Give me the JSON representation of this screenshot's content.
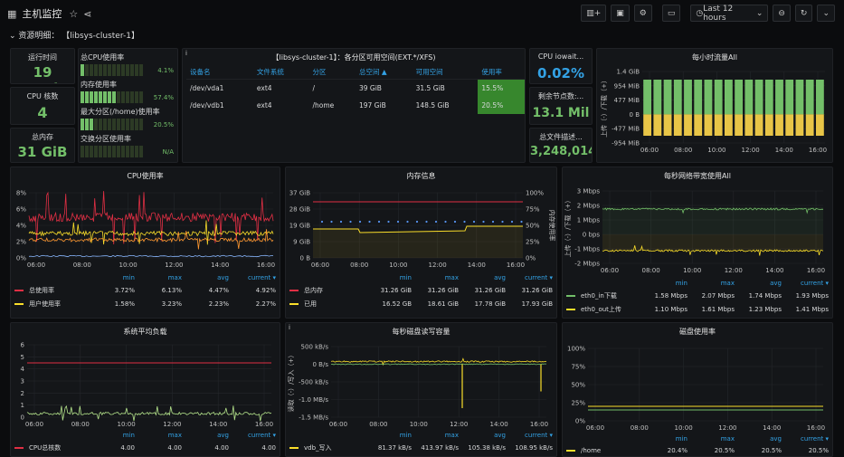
{
  "header": {
    "title": "主机监控",
    "time_range": "Last 12 hours"
  },
  "row_label": "资源明细： 【libsys-cluster-1】",
  "stats": {
    "uptime": {
      "title": "运行时间",
      "value": "19 week"
    },
    "cpu_cores": {
      "title": "CPU 核数",
      "value": "4"
    },
    "memory": {
      "title": "总内存",
      "value": "31 GiB"
    },
    "iowait": {
      "title": "CPU iowait...",
      "value": "0.02%"
    },
    "inodes": {
      "title": "剩余节点数:...",
      "value": "13.1 Mil"
    },
    "fds": {
      "title": "总文件描述...",
      "value": "3,248,014"
    }
  },
  "gauges": [
    {
      "label": "总CPU使用率",
      "value": "4.1%",
      "fill": 0.04
    },
    {
      "label": "内存使用率",
      "value": "57.4%",
      "fill": 0.57
    },
    {
      "label": "最大分区(/home)使用率",
      "value": "20.5%",
      "fill": 0.2
    },
    {
      "label": "交换分区使用率",
      "value": "N/A",
      "fill": 0
    }
  ],
  "disk_table": {
    "title": "【libsys-cluster-1】：各分区可用空间(EXT.*/XFS)",
    "headers": [
      "设备名",
      "文件系统",
      "分区",
      "总空间 ▲",
      "可用空间",
      "使用率"
    ],
    "rows": [
      [
        "/dev/vda1",
        "ext4",
        "/",
        "39 GiB",
        "31.5 GiB",
        "15.5%"
      ],
      [
        "/dev/vdb1",
        "ext4",
        "/home",
        "197 GiB",
        "148.5 GiB",
        "20.5%"
      ]
    ]
  },
  "charts": {
    "hourly_traffic": {
      "title": "每小时流量All",
      "yticks": [
        "1.4 GiB",
        "954 MiB",
        "477 MiB",
        "0 B",
        "-477 MiB",
        "-954 MiB"
      ],
      "xticks": [
        "06:00",
        "08:00",
        "10:00",
        "12:00",
        "14:00",
        "16:00"
      ],
      "ylabel": "上传（-）/下载（+）"
    },
    "cpu": {
      "title": "CPU使用率",
      "yticks": [
        "8%",
        "6%",
        "4%",
        "2%",
        "0%"
      ],
      "xticks": [
        "06:00",
        "08:00",
        "10:00",
        "12:00",
        "14:00",
        "16:00"
      ],
      "legend_head": [
        "min",
        "max",
        "avg",
        "current ▾"
      ],
      "legend": [
        {
          "name": "总使用率",
          "color": "#e02f44",
          "vals": [
            "3.72%",
            "6.13%",
            "4.47%",
            "4.92%"
          ]
        },
        {
          "name": "用户使用率",
          "color": "#fade2a",
          "vals": [
            "1.58%",
            "3.23%",
            "2.23%",
            "2.27%"
          ]
        }
      ]
    },
    "memory": {
      "title": "内存信息",
      "yticks": [
        "37 GiB",
        "28 GiB",
        "19 GiB",
        "9 GiB",
        "0 B"
      ],
      "y2ticks": [
        "100%",
        "75%",
        "50%",
        "25%",
        "0%"
      ],
      "y2label": "内存使用率",
      "xticks": [
        "06:00",
        "08:00",
        "10:00",
        "12:00",
        "14:00",
        "16:00"
      ],
      "legend_head": [
        "min",
        "max",
        "avg",
        "current ▾"
      ],
      "legend": [
        {
          "name": "总内存",
          "color": "#e02f44",
          "vals": [
            "31.26 GiB",
            "31.26 GiB",
            "31.26 GiB",
            "31.26 GiB"
          ]
        },
        {
          "name": "已用",
          "color": "#fade2a",
          "vals": [
            "16.52 GB",
            "18.61 GiB",
            "17.78 GiB",
            "17.93 GiB"
          ]
        }
      ]
    },
    "network": {
      "title": "每秒网络带宽使用All",
      "yticks": [
        "3 Mbps",
        "2 Mbps",
        "1 Mbps",
        "0 bps",
        "-1 Mbps",
        "-2 Mbps"
      ],
      "ylabel": "上传（-）/下载（+）",
      "xticks": [
        "06:00",
        "08:00",
        "10:00",
        "12:00",
        "14:00",
        "16:00"
      ],
      "legend_head": [
        "min",
        "max",
        "avg",
        "current ▾"
      ],
      "legend": [
        {
          "name": "eth0_in下载",
          "color": "#73bf69",
          "vals": [
            "1.58 Mbps",
            "2.07 Mbps",
            "1.74 Mbps",
            "1.93 Mbps"
          ]
        },
        {
          "name": "eth0_out上传",
          "color": "#fade2a",
          "vals": [
            "1.10 Mbps",
            "1.61 Mbps",
            "1.23 Mbps",
            "1.41 Mbps"
          ]
        }
      ]
    },
    "load": {
      "title": "系统平均负载",
      "yticks": [
        "6",
        "5",
        "4",
        "3",
        "2",
        "1",
        "0"
      ],
      "xticks": [
        "06:00",
        "08:00",
        "10:00",
        "12:00",
        "14:00",
        "16:00"
      ],
      "legend_head": [
        "min",
        "max",
        "avg",
        "current ▾"
      ],
      "legend": [
        {
          "name": "CPU总核数",
          "color": "#e02f44",
          "vals": [
            "4.00",
            "4.00",
            "4.00",
            "4.00"
          ]
        }
      ]
    },
    "disk_io": {
      "title": "每秒磁盘读写容量",
      "yticks": [
        "500 kB/s",
        "0 B/s",
        "-500 kB/s",
        "-1.0 MB/s",
        "-1.5 MB/s"
      ],
      "ylabel": "读取（-）/写入（+）",
      "xticks": [
        "06:00",
        "08:00",
        "10:00",
        "12:00",
        "14:00",
        "16:00"
      ],
      "legend_head": [
        "min",
        "max",
        "avg",
        "current ▾"
      ],
      "legend": [
        {
          "name": "vdb_写入",
          "color": "#fade2a",
          "vals": [
            "81.37 kB/s",
            "413.97 kB/s",
            "105.38 kB/s",
            "108.95 kB/s"
          ]
        }
      ]
    },
    "disk_usage": {
      "title": "磁盘使用率",
      "yticks": [
        "100%",
        "75%",
        "50%",
        "25%",
        "0%"
      ],
      "xticks": [
        "06:00",
        "08:00",
        "10:00",
        "12:00",
        "14:00",
        "16:00"
      ],
      "legend_head": [
        "min",
        "max",
        "avg",
        "current ▾"
      ],
      "legend": [
        {
          "name": "/home",
          "color": "#fade2a",
          "vals": [
            "20.4%",
            "20.5%",
            "20.5%",
            "20.5%"
          ]
        }
      ]
    }
  },
  "colors": {
    "green": "#73bf69",
    "yellow": "#fade2a",
    "red": "#e02f44",
    "blue": "#33a2e5"
  }
}
